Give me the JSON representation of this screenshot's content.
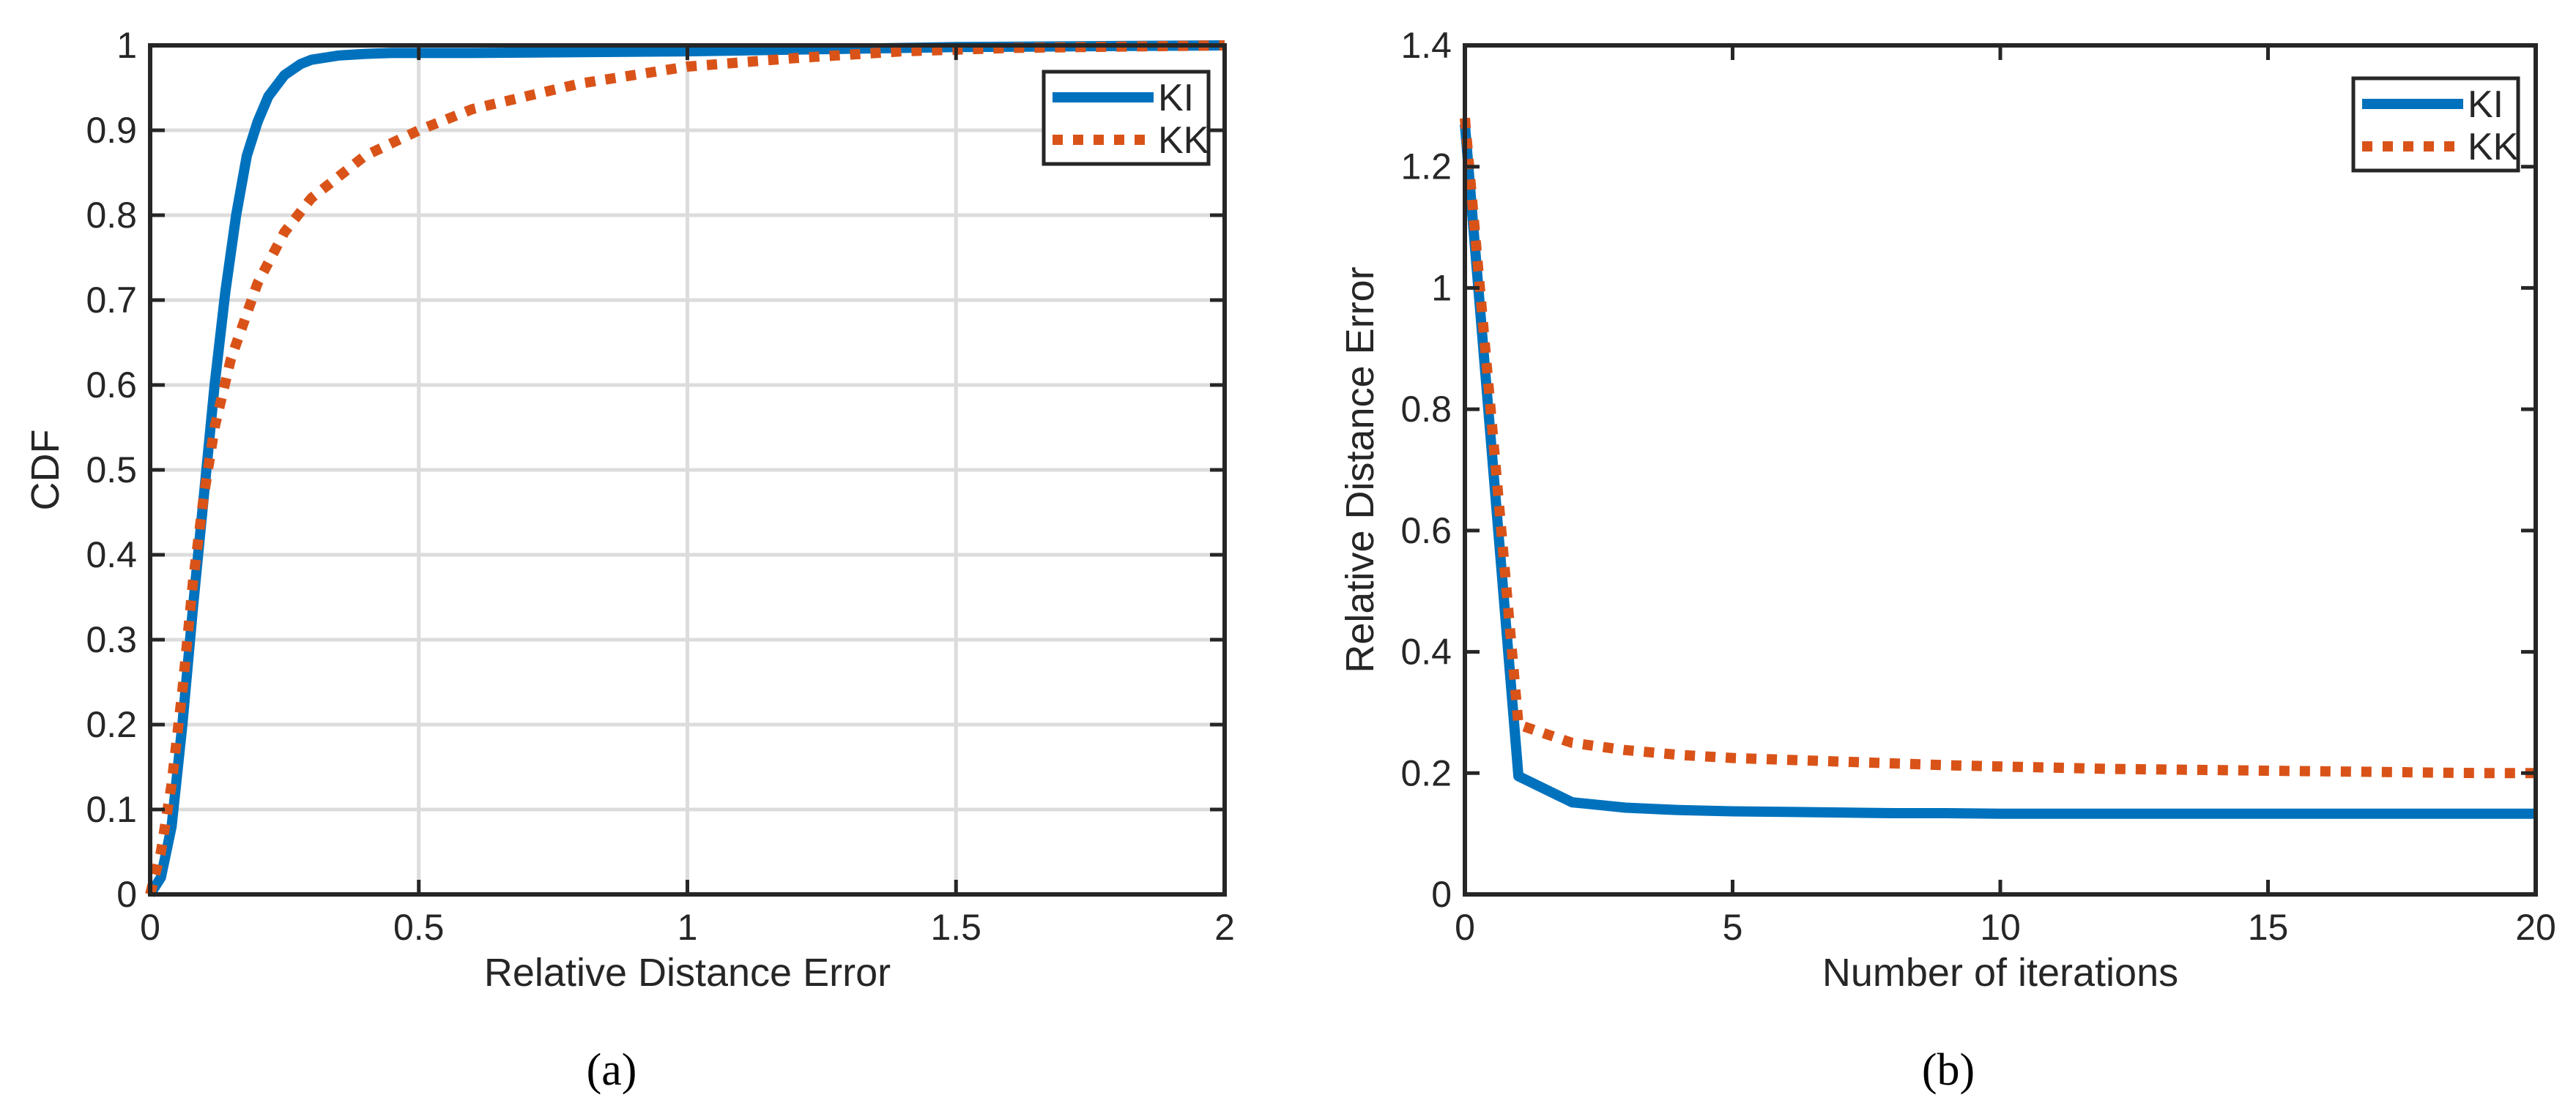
{
  "chart_data": [
    {
      "type": "line",
      "panel_label": "(a)",
      "xlabel": "Relative Distance Error",
      "ylabel": "CDF",
      "xlim": [
        0,
        2
      ],
      "ylim": [
        0,
        1
      ],
      "xticks": [
        0,
        0.5,
        1,
        1.5,
        2
      ],
      "xtick_labels": [
        "0",
        "0.5",
        "1",
        "1.5",
        "2"
      ],
      "yticks": [
        0,
        0.1,
        0.2,
        0.3,
        0.4,
        0.5,
        0.6,
        0.7,
        0.8,
        0.9,
        1
      ],
      "ytick_labels": [
        "0",
        "0.1",
        "0.2",
        "0.3",
        "0.4",
        "0.5",
        "0.6",
        "0.7",
        "0.8",
        "0.9",
        "1"
      ],
      "grid": true,
      "legend": "top-right",
      "series": [
        {
          "name": "KI",
          "color": "#0072BD",
          "style": "solid",
          "x": [
            0,
            0.02,
            0.04,
            0.06,
            0.08,
            0.1,
            0.12,
            0.14,
            0.16,
            0.18,
            0.2,
            0.22,
            0.25,
            0.28,
            0.3,
            0.35,
            0.4,
            0.45,
            0.5,
            0.6,
            0.8,
            1.0,
            1.2,
            1.5,
            2.0
          ],
          "y": [
            0,
            0.02,
            0.08,
            0.2,
            0.34,
            0.47,
            0.6,
            0.71,
            0.8,
            0.87,
            0.91,
            0.94,
            0.965,
            0.978,
            0.983,
            0.988,
            0.99,
            0.991,
            0.991,
            0.991,
            0.992,
            0.993,
            0.995,
            0.998,
            1.0
          ]
        },
        {
          "name": "KK",
          "color": "#D95319",
          "style": "dotted",
          "x": [
            0,
            0.02,
            0.04,
            0.06,
            0.08,
            0.1,
            0.12,
            0.15,
            0.2,
            0.25,
            0.3,
            0.4,
            0.5,
            0.6,
            0.7,
            0.8,
            1.0,
            1.2,
            1.4,
            1.6,
            2.0
          ],
          "y": [
            0,
            0.05,
            0.13,
            0.24,
            0.37,
            0.47,
            0.55,
            0.63,
            0.72,
            0.78,
            0.82,
            0.87,
            0.9,
            0.925,
            0.94,
            0.955,
            0.975,
            0.985,
            0.993,
            0.997,
            1.0
          ]
        }
      ]
    },
    {
      "type": "line",
      "panel_label": "(b)",
      "xlabel": "Number of iterations",
      "ylabel": "Relative Distance Error",
      "xlim": [
        0,
        20
      ],
      "ylim": [
        0,
        1.4
      ],
      "xticks": [
        0,
        5,
        10,
        15,
        20
      ],
      "xtick_labels": [
        "0",
        "5",
        "10",
        "15",
        "20"
      ],
      "yticks": [
        0,
        0.2,
        0.4,
        0.6,
        0.8,
        1,
        1.2,
        1.4
      ],
      "ytick_labels": [
        "0",
        "0.2",
        "0.4",
        "0.6",
        "0.8",
        "1",
        "1.2",
        "1.4"
      ],
      "grid": false,
      "legend": "top-right",
      "series": [
        {
          "name": "KI",
          "color": "#0072BD",
          "style": "solid",
          "x": [
            0,
            1,
            2,
            3,
            4,
            5,
            6,
            7,
            8,
            9,
            10,
            11,
            12,
            13,
            14,
            15,
            16,
            17,
            18,
            19,
            20
          ],
          "y": [
            1.27,
            0.195,
            0.152,
            0.143,
            0.139,
            0.137,
            0.136,
            0.135,
            0.134,
            0.134,
            0.133,
            0.133,
            0.133,
            0.133,
            0.133,
            0.133,
            0.133,
            0.133,
            0.133,
            0.133,
            0.133
          ]
        },
        {
          "name": "KK",
          "color": "#D95319",
          "style": "dotted",
          "x": [
            0,
            1,
            2,
            3,
            4,
            5,
            6,
            7,
            8,
            9,
            10,
            11,
            12,
            13,
            14,
            15,
            16,
            17,
            18,
            19,
            20
          ],
          "y": [
            1.28,
            0.28,
            0.25,
            0.238,
            0.23,
            0.225,
            0.222,
            0.219,
            0.216,
            0.213,
            0.211,
            0.209,
            0.207,
            0.206,
            0.205,
            0.204,
            0.203,
            0.202,
            0.201,
            0.2,
            0.2
          ]
        }
      ]
    }
  ]
}
